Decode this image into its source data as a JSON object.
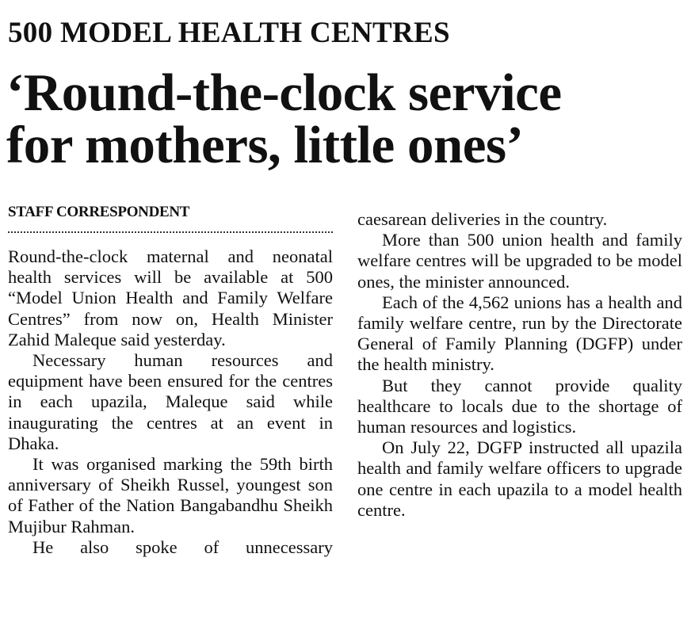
{
  "kicker": "500 MODEL HEALTH CENTRES",
  "headline": {
    "line1": "‘Round-the-clock service",
    "line2": "for mothers, little ones’"
  },
  "byline": "STAFF CORRESPONDENT",
  "column1": [
    "Round-the-clock maternal and neonatal health services will be available at 500 “Model Union Health and Family Welfare Centres” from now on, Health Minister Zahid Maleque said yesterday.",
    "Necessary human resources and equipment have been ensured for the centres in each upazila, Maleque said while inaugurating the centres at an event in Dhaka.",
    "It was organised marking the 59th birth anniversary of Sheikh Russel, youngest son of Father of the Nation Bangabandhu Sheikh Mujibur Rahman.",
    "He also spoke of unnecessary"
  ],
  "column2": [
    "caesarean deliveries in the country.",
    "More than 500 union health and family welfare centres will be upgraded to be model ones, the minister announced.",
    "Each of the 4,562 unions has a health and family welfare centre, run by the Directorate General of Family Planning (DGFP) under the health ministry.",
    "But they cannot provide quality healthcare to locals due to the shortage of human resources and logistics.",
    "On July 22, DGFP instructed all upazila health and family welfare officers to upgrade one centre in each upazila to a model health centre."
  ]
}
